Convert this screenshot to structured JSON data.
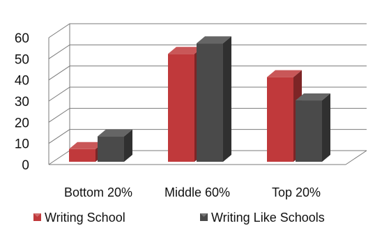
{
  "chart_data": {
    "type": "bar",
    "title": "",
    "xlabel": "",
    "ylabel": "",
    "categories": [
      "Bottom 20%",
      "Middle 60%",
      "Top 20%"
    ],
    "series": [
      {
        "name": "Writing School",
        "values": [
          6,
          51,
          40
        ],
        "color": "#c0393b"
      },
      {
        "name": "Writing Like Schools",
        "values": [
          12,
          56,
          29
        ],
        "color": "#4a4a4a"
      }
    ],
    "ylim": [
      0,
      60
    ],
    "yticks": [
      "0",
      "10",
      "20",
      "30",
      "40",
      "50",
      "60"
    ],
    "grid": true,
    "three_d": true,
    "legend_position": "bottom"
  }
}
